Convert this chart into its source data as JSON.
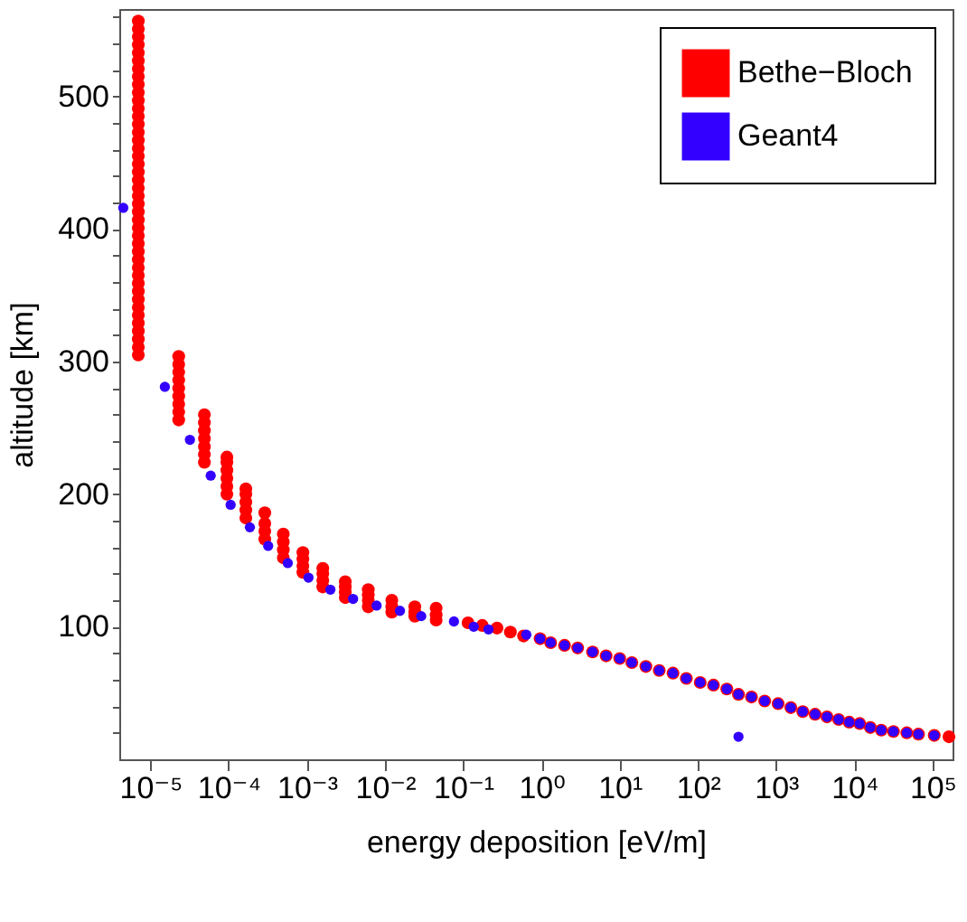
{
  "chart_data": {
    "type": "scatter",
    "xlabel": "energy deposition [eV/m]",
    "ylabel": "altitude [km]",
    "log": "x",
    "grid": false,
    "legend": "top right",
    "marker": "circle",
    "xlim": [
      4e-06,
      180000.0
    ],
    "ylim": [
      0,
      566
    ],
    "xticks": [
      {
        "value": 1e-05,
        "label": "10⁻⁵"
      },
      {
        "value": 0.0001,
        "label": "10⁻⁴"
      },
      {
        "value": 0.001,
        "label": "10⁻³"
      },
      {
        "value": 0.01,
        "label": "10⁻²"
      },
      {
        "value": 0.1,
        "label": "10⁻¹"
      },
      {
        "value": 1,
        "label": "10⁰"
      },
      {
        "value": 10,
        "label": "10¹"
      },
      {
        "value": 100,
        "label": "10²"
      },
      {
        "value": 1000,
        "label": "10³"
      },
      {
        "value": 10000,
        "label": "10⁴"
      },
      {
        "value": 100000,
        "label": "10⁵"
      }
    ],
    "yticks": [
      {
        "value": 20,
        "label": null
      },
      {
        "value": 40,
        "label": null
      },
      {
        "value": 60,
        "label": null
      },
      {
        "value": 80,
        "label": null
      },
      100,
      {
        "value": 120,
        "label": null
      },
      {
        "value": 140,
        "label": null
      },
      {
        "value": 160,
        "label": null
      },
      {
        "value": 180,
        "label": null
      },
      200,
      {
        "value": 220,
        "label": null
      },
      {
        "value": 240,
        "label": null
      },
      {
        "value": 260,
        "label": null
      },
      {
        "value": 280,
        "label": null
      },
      300,
      {
        "value": 320,
        "label": null
      },
      {
        "value": 340,
        "label": null
      },
      {
        "value": 360,
        "label": null
      },
      {
        "value": 380,
        "label": null
      },
      400,
      {
        "value": 420,
        "label": null
      },
      {
        "value": 440,
        "label": null
      },
      {
        "value": 460,
        "label": null
      },
      {
        "value": 480,
        "label": null
      },
      500,
      {
        "value": 520,
        "label": null
      },
      {
        "value": 540,
        "label": null
      },
      {
        "value": 560,
        "label": null
      }
    ],
    "series": [
      {
        "name": "Bethe−Bloch",
        "color": "#ff0000",
        "x": [
          7e-06,
          7e-06,
          7e-06,
          7e-06,
          7e-06,
          7e-06,
          7e-06,
          7e-06,
          7e-06,
          7e-06,
          7e-06,
          7e-06,
          7e-06,
          7e-06,
          7e-06,
          7e-06,
          7e-06,
          7e-06,
          7e-06,
          7e-06,
          7e-06,
          7e-06,
          7e-06,
          7e-06,
          7e-06,
          7e-06,
          7e-06,
          7e-06,
          7e-06,
          7e-06,
          7e-06,
          7e-06,
          7e-06,
          7e-06,
          7e-06,
          7e-06,
          7e-06,
          7e-06,
          7e-06,
          7e-06,
          7e-06,
          7e-06,
          7e-06,
          2.3e-05,
          2.3e-05,
          2.3e-05,
          2.3e-05,
          2.3e-05,
          2.3e-05,
          2.3e-05,
          2.3e-05,
          2.3e-05,
          4.9e-05,
          4.9e-05,
          4.9e-05,
          4.9e-05,
          4.9e-05,
          4.9e-05,
          4.9e-05,
          9.5e-05,
          9.5e-05,
          9.5e-05,
          9.5e-05,
          9.5e-05,
          9.5e-05,
          0.000166,
          0.000166,
          0.000166,
          0.000166,
          0.000166,
          0.00029,
          0.00029,
          0.00029,
          0.00029,
          0.0005,
          0.0005,
          0.0005,
          0.0005,
          0.00089,
          0.00089,
          0.00089,
          0.00089,
          0.0016,
          0.0016,
          0.0016,
          0.0016,
          0.0031,
          0.0031,
          0.0031,
          0.0031,
          0.0061,
          0.0061,
          0.0061,
          0.0061,
          0.0122,
          0.0122,
          0.0122,
          0.024,
          0.024,
          0.024,
          0.045,
          0.045,
          0.045,
          0.115,
          0.175,
          0.27,
          0.4,
          0.59,
          0.96,
          1.31,
          1.97,
          2.9,
          4.5,
          6.7,
          10,
          14.3,
          21.6,
          32,
          48,
          71,
          107,
          158,
          234,
          330,
          484,
          714,
          1060,
          1540,
          2190,
          3150,
          4470,
          6300,
          8600,
          11700,
          16000,
          22100,
          31600,
          46800,
          66000,
          105000,
          162000
        ],
        "values": [
          305,
          311,
          317,
          323,
          329,
          335,
          341,
          347,
          353,
          359,
          365,
          371,
          377,
          383,
          389,
          395,
          401,
          407,
          413,
          419,
          425,
          431,
          437,
          443,
          449,
          455,
          461,
          467,
          473,
          479,
          485,
          491,
          497,
          503,
          509,
          515,
          521,
          527,
          533,
          539,
          545,
          551,
          557,
          256,
          262,
          268,
          274,
          280,
          286,
          292,
          298,
          304,
          224,
          230,
          236,
          242,
          248,
          254,
          260,
          200,
          206,
          212,
          218,
          224,
          228,
          182,
          188,
          194,
          200,
          204,
          166,
          172,
          178,
          186,
          152,
          158,
          164,
          170,
          141,
          146,
          151,
          156,
          130,
          135,
          140,
          144,
          122,
          126,
          130,
          134,
          115,
          120,
          124,
          128,
          111,
          115,
          120,
          108,
          111,
          115,
          105,
          109,
          114,
          103,
          101,
          99,
          96,
          93,
          91,
          88,
          86,
          84,
          81,
          78,
          76,
          73,
          70,
          67,
          65,
          61,
          58,
          56,
          53,
          49,
          47,
          44,
          42,
          39,
          36,
          34,
          32,
          30,
          28,
          27,
          24,
          22,
          21,
          20,
          19,
          18,
          17
        ]
      },
      {
        "name": "Geant4",
        "color": "#3300ff",
        "x": [
          4.5e-06,
          1.53e-05,
          3.2e-05,
          5.9e-05,
          0.000106,
          0.000187,
          0.00032,
          0.00057,
          0.00105,
          0.002,
          0.0039,
          0.0078,
          0.0155,
          0.029,
          0.076,
          0.136,
          0.21,
          0.64,
          0.96,
          1.31,
          1.97,
          2.9,
          4.5,
          6.7,
          10,
          14.3,
          21.6,
          32,
          48,
          71,
          107,
          158,
          234,
          330,
          330,
          484,
          714,
          1060,
          1540,
          2190,
          3150,
          4470,
          6300,
          8600,
          11700,
          16000,
          22100,
          31600,
          46800,
          66000,
          105000
        ],
        "values": [
          416,
          281,
          241,
          214,
          192,
          175,
          161,
          148,
          137,
          128,
          121,
          116,
          112,
          108,
          104,
          100,
          98,
          94,
          91,
          88,
          86,
          84,
          81,
          78,
          76,
          73,
          70,
          67,
          65,
          61,
          58,
          56,
          53,
          49,
          17,
          47,
          44,
          42,
          39,
          36,
          34,
          32,
          30,
          28,
          27,
          24,
          22,
          21,
          20,
          19,
          18
        ]
      }
    ]
  }
}
